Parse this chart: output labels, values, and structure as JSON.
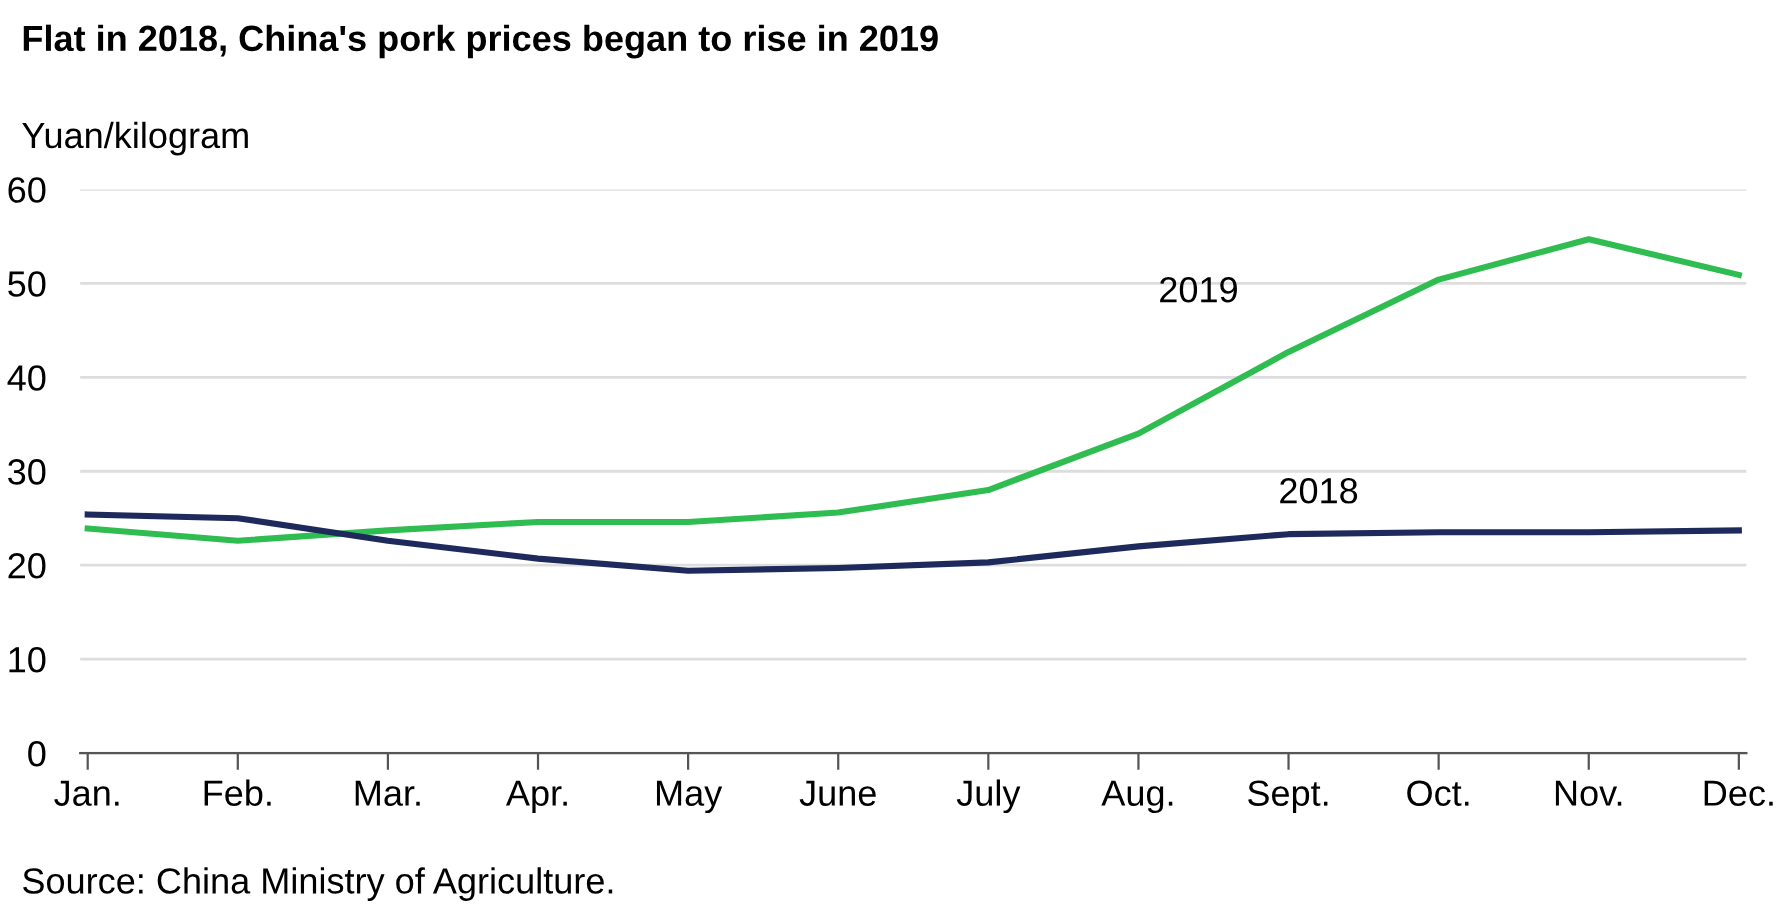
{
  "chart_data": {
    "type": "line",
    "title": "Flat in 2018, China's pork prices began to rise in 2019",
    "ylabel": "Yuan/kilogram",
    "categories": [
      "Jan.",
      "Feb.",
      "Mar.",
      "Apr.",
      "May",
      "June",
      "July",
      "Aug.",
      "Sept.",
      "Oct.",
      "Nov.",
      "Dec."
    ],
    "series": [
      {
        "name": "2019",
        "color": "#2fbd52",
        "values": [
          23.9,
          22.6,
          23.7,
          24.6,
          24.6,
          25.6,
          28,
          34,
          42.7,
          50.4,
          54.7,
          50.9
        ]
      },
      {
        "name": "2018",
        "color": "#1f2a5c",
        "values": [
          25.4,
          25,
          22.6,
          20.7,
          19.4,
          19.7,
          20.3,
          22,
          23.3,
          23.5,
          23.5,
          23.7
        ]
      }
    ],
    "ylim": [
      0,
      60
    ],
    "yticks": [
      0,
      10,
      20,
      30,
      40,
      50,
      60
    ],
    "grid": "y",
    "legend": false,
    "marker": "none",
    "line_style": "solid",
    "annotations": [
      "Source: China Ministry of Agriculture."
    ]
  }
}
